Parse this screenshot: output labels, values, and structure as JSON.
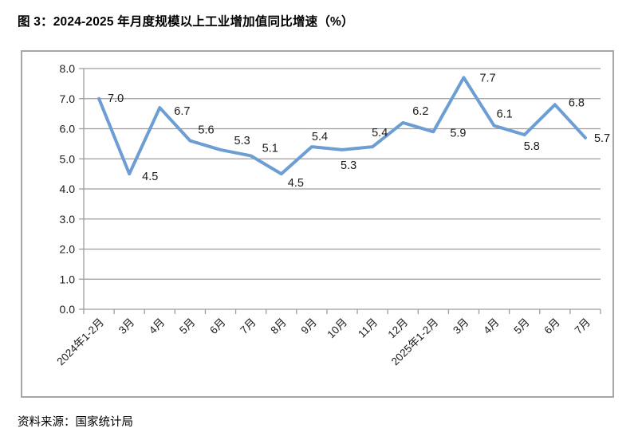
{
  "page": {
    "title": "图 3：2024-2025 年月度规模以上工业增加值同比增速（%）",
    "source": "资料来源：国家统计局"
  },
  "chart_data": {
    "type": "line",
    "title": "图 3：2024-2025 年月度规模以上工业增加值同比增速（%）",
    "categories": [
      "2024年1-2月",
      "3月",
      "4月",
      "5月",
      "6月",
      "7月",
      "8月",
      "9月",
      "10月",
      "11月",
      "12月",
      "2025年1-2月",
      "3月",
      "4月",
      "5月",
      "6月",
      "7月"
    ],
    "values": [
      7.0,
      4.5,
      6.7,
      5.6,
      5.3,
      5.1,
      4.5,
      5.4,
      5.3,
      5.4,
      6.2,
      5.9,
      7.7,
      6.1,
      5.8,
      6.8,
      5.7
    ],
    "data_labels": [
      "7.0",
      "4.5",
      "6.7",
      "5.6",
      "5.3",
      "5.1",
      "4.5",
      "5.4",
      "5.3",
      "5.4",
      "6.2",
      "5.9",
      "7.7",
      "6.1",
      "5.8",
      "6.8",
      "5.7"
    ],
    "xlabel": "",
    "ylabel": "",
    "ylim": [
      0,
      8
    ],
    "y_tick_labels": [
      "0.0",
      "1.0",
      "2.0",
      "3.0",
      "4.0",
      "5.0",
      "6.0",
      "7.0",
      "8.0"
    ],
    "grid": true,
    "legend": "none",
    "colors": {
      "line": "#6c9dd3",
      "grid": "#9d9d9d",
      "axis": "#9d9d9d",
      "frame_border": "#a7a7a7",
      "text": "#1a1a1a"
    }
  }
}
